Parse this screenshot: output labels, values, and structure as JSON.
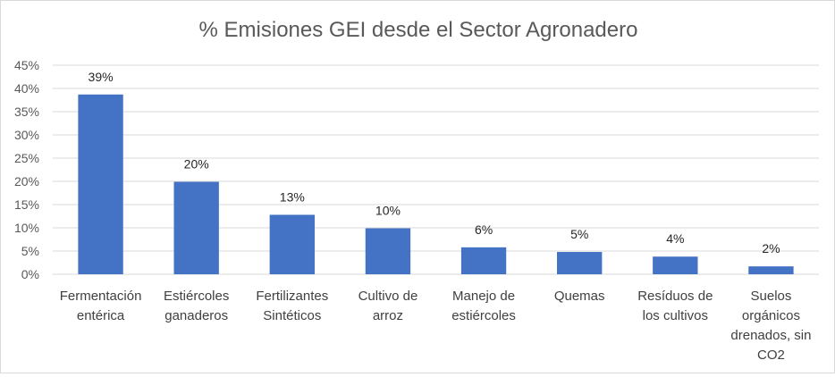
{
  "chart_data": {
    "type": "bar",
    "title": "% Emisiones GEI desde el Sector Agronadero",
    "categories": [
      [
        "Fermentación",
        "entérica"
      ],
      [
        "Estiércoles",
        "ganaderos"
      ],
      [
        "Fertilizantes",
        "Sintéticos"
      ],
      [
        "Cultivo de",
        "arroz"
      ],
      [
        "Manejo de",
        "estiércoles"
      ],
      [
        "Quemas"
      ],
      [
        "Resíduos de",
        "los cultivos"
      ],
      [
        "Suelos",
        "orgánicos",
        "drenados, sin",
        "CO2"
      ]
    ],
    "values": [
      39,
      20,
      13,
      10,
      6,
      5,
      4,
      2
    ],
    "data_labels": [
      "39%",
      "20%",
      "13%",
      "10%",
      "6%",
      "5%",
      "4%",
      "2%"
    ],
    "bar_values_estimated": [
      38.7,
      19.9,
      12.8,
      9.9,
      5.8,
      4.8,
      3.8,
      1.7
    ],
    "y_ticks": [
      "0%",
      "5%",
      "10%",
      "15%",
      "20%",
      "25%",
      "30%",
      "35%",
      "40%",
      "45%"
    ],
    "ylim": [
      0,
      45
    ],
    "grid": true,
    "legend": "none",
    "bar_color": "#4472C4",
    "grid_color": "#d9d9d9"
  }
}
